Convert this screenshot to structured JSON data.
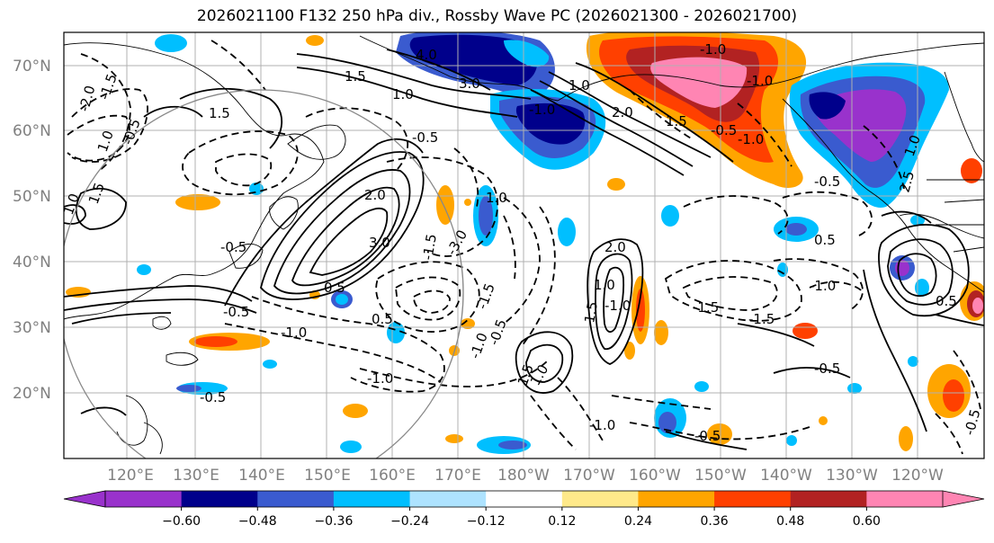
{
  "title": "2026021100 F132 250 hPa div., Rossby Wave PC (2026021300 - 2026021700)",
  "lat_labels": [
    "70°N",
    "60°N",
    "50°N",
    "40°N",
    "30°N",
    "20°N"
  ],
  "lon_labels": [
    "120°E",
    "130°E",
    "140°E",
    "150°E",
    "160°E",
    "170°E",
    "180°W",
    "170°W",
    "160°W",
    "150°W",
    "140°W",
    "130°W",
    "120°W"
  ],
  "colorbar": {
    "colors": [
      "#9932cc",
      "#00008b",
      "#3a5bcf",
      "#00bfff",
      "#aee3ff",
      "#ffffff",
      "#ffe98a",
      "#ffa500",
      "#ff4000",
      "#b22222",
      "#ff85b3"
    ],
    "ticks": [
      "−0.60",
      "−0.48",
      "−0.36",
      "−0.24",
      "−0.12",
      "0.12",
      "0.24",
      "0.36",
      "0.48",
      "0.60"
    ]
  },
  "contour_labels": [
    "4.0",
    "3.0",
    "1.5",
    "1.0",
    "-1.0",
    "1.5",
    "1.0",
    "-2.0",
    "1.0",
    "-1.5",
    "1.5",
    "1.0",
    "-0.5",
    "-0.5",
    "-1.0",
    "2.0",
    "3.0",
    "-1.0",
    "-0.5",
    "-1.0",
    "-0.5",
    "0.5",
    "1.5",
    "-3.0",
    "0.5",
    "-1.5",
    "2.0",
    "-1.0",
    "-1.0",
    "-1.0",
    "-1.5",
    "-0.5",
    "-1.5",
    "-1.5",
    "1.0",
    "-0.5",
    "-0.5",
    "1.5",
    "-1.0",
    "-0.5",
    "0.5",
    "-0.5",
    "-1.0",
    "2.0",
    "1.5",
    "-0.5",
    "1.0",
    "1.0",
    "-1.0",
    "2.5",
    "1.0",
    "0.5",
    "-0.5"
  ]
}
